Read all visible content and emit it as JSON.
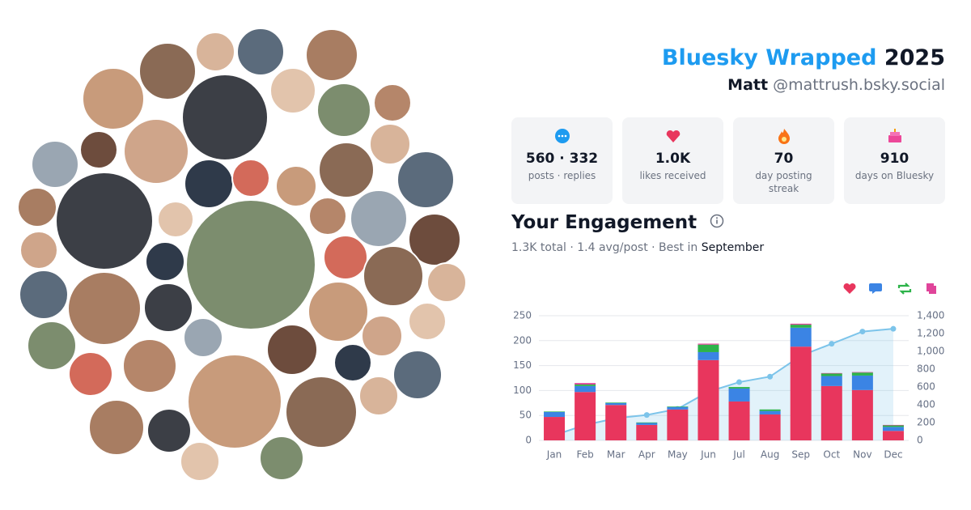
{
  "header": {
    "brand": "Bluesky Wrapped",
    "year": "2025",
    "name": "Matt",
    "handle": "@mattrush.bsky.social"
  },
  "stats": [
    {
      "value": "560 · 332",
      "label": "posts · replies"
    },
    {
      "value": "1.0K",
      "label": "likes received"
    },
    {
      "value": "70",
      "label": "day posting streak"
    },
    {
      "value": "910",
      "label": "days on Bluesky"
    }
  ],
  "engagement": {
    "title": "Your Engagement",
    "summary": "1.3K total · 1.4 avg/post · Best in",
    "best_month": "September"
  },
  "chart_data": {
    "type": "bar",
    "stacked": true,
    "categories": [
      "Jan",
      "Feb",
      "Mar",
      "Apr",
      "May",
      "Jun",
      "Jul",
      "Aug",
      "Sep",
      "Oct",
      "Nov",
      "Dec"
    ],
    "series": [
      {
        "color": "#e8365d",
        "values": [
          47,
          97,
          71,
          31,
          62,
          161,
          78,
          52,
          188,
          109,
          101,
          19
        ]
      },
      {
        "color": "#3b84e4",
        "values": [
          10,
          12,
          4,
          4,
          5,
          16,
          26,
          7,
          38,
          20,
          29,
          8
        ]
      },
      {
        "color": "#2db34a",
        "values": [
          1,
          3,
          1,
          1,
          1,
          15,
          3,
          3,
          6,
          5,
          6,
          3
        ]
      },
      {
        "color": "#e0449a",
        "values": [
          0,
          3,
          0,
          0,
          0,
          2,
          0,
          0,
          2,
          1,
          1,
          1
        ]
      },
      {
        "type": "line",
        "axis": "y2",
        "color": "#7cc4ea",
        "values": [
          58,
          173,
          249,
          285,
          353,
          547,
          654,
          716,
          950,
          1085,
          1222,
          1253
        ]
      }
    ],
    "ylim": [
      0,
      250
    ],
    "yticks": [
      0,
      50,
      100,
      150,
      200,
      250
    ],
    "y2lim": [
      0,
      1400
    ],
    "y2ticks": [
      0,
      200,
      400,
      600,
      800,
      {
        "value": 1000,
        "label": "1,000"
      },
      {
        "value": 1200,
        "label": "1,200"
      },
      {
        "value": 1400,
        "label": "1,400"
      }
    ],
    "grid": true
  }
}
